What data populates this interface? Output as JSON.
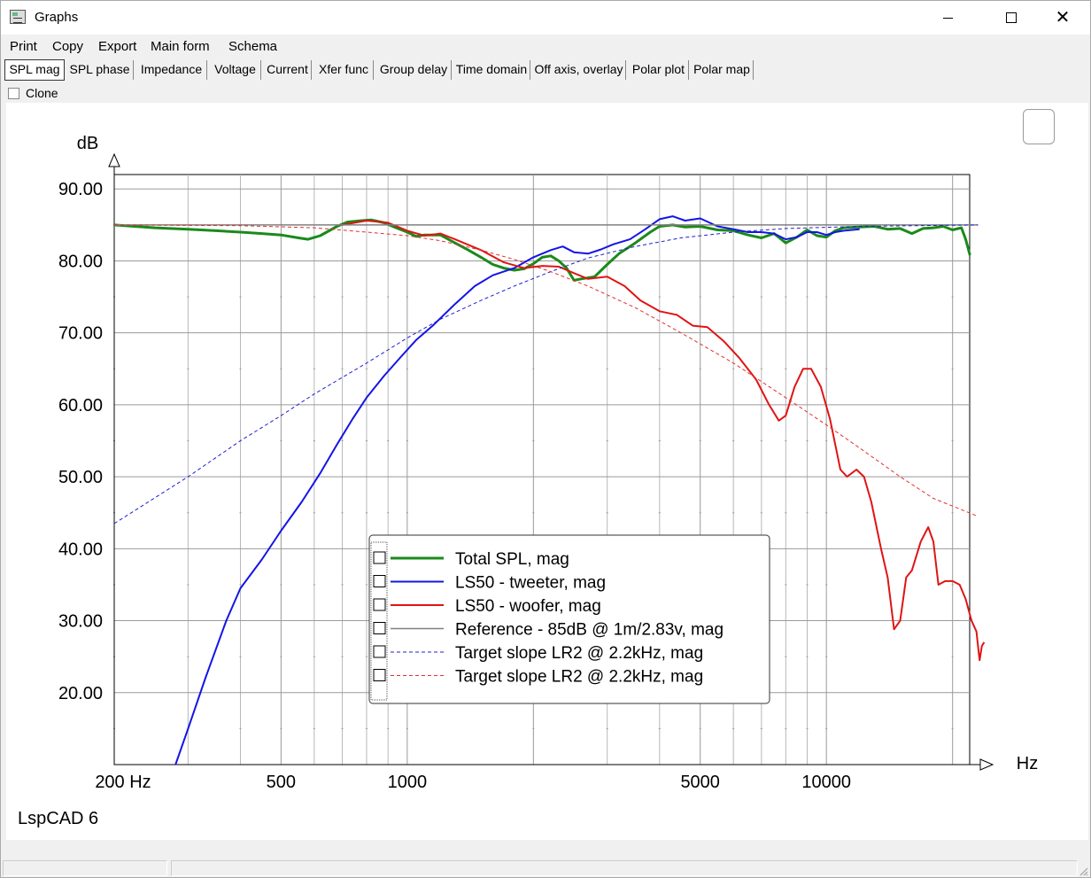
{
  "window": {
    "title": "Graphs"
  },
  "menu": [
    "Print",
    "Copy",
    "Export",
    "Main form",
    "Schema"
  ],
  "tabs": [
    "SPL mag",
    "SPL phase",
    "Impedance",
    "Voltage",
    "Current",
    "Xfer func",
    "Group delay",
    "Time domain",
    "Off axis, overlay",
    "Polar plot",
    "Polar map"
  ],
  "active_tab": "SPL mag",
  "clone_label": "Clone",
  "brand": "LspCAD 6",
  "colors": {
    "total": "#1a8a1a",
    "tweeter": "#1414e6",
    "woofer": "#e01414",
    "reference": "#808080",
    "target_tweeter": "#2020d0",
    "target_woofer": "#e03030"
  },
  "chart_data": {
    "type": "line",
    "xlabel": "Hz",
    "ylabel": "dB",
    "x_scale": "log",
    "xlim": [
      200,
      20000
    ],
    "ylim": [
      10,
      92
    ],
    "x_ticks": [
      {
        "value": 200,
        "label": "200 Hz"
      },
      {
        "value": 500,
        "label": "500"
      },
      {
        "value": 1000,
        "label": "1000"
      },
      {
        "value": 5000,
        "label": "5000"
      },
      {
        "value": 10000,
        "label": "10000"
      }
    ],
    "y_ticks": [
      {
        "value": 90,
        "label": "90.00"
      },
      {
        "value": 80,
        "label": "80.00"
      },
      {
        "value": 70,
        "label": "70.00"
      },
      {
        "value": 60,
        "label": "60.00"
      },
      {
        "value": 50,
        "label": "50.00"
      },
      {
        "value": 40,
        "label": "40.00"
      },
      {
        "value": 30,
        "label": "30.00"
      },
      {
        "value": 20,
        "label": "20.00"
      }
    ],
    "grid": true,
    "legend_position": "bottom-center",
    "series": [
      {
        "name": "Total SPL, mag",
        "color": "#1a8a1a",
        "dash": "solid",
        "width": 3,
        "points": [
          [
            200,
            85
          ],
          [
            250,
            84.6
          ],
          [
            300,
            84.4
          ],
          [
            350,
            84.2
          ],
          [
            400,
            84
          ],
          [
            450,
            83.8
          ],
          [
            500,
            83.6
          ],
          [
            550,
            83.2
          ],
          [
            580,
            83
          ],
          [
            620,
            83.5
          ],
          [
            680,
            84.8
          ],
          [
            720,
            85.4
          ],
          [
            780,
            85.6
          ],
          [
            820,
            85.7
          ],
          [
            880,
            85.3
          ],
          [
            950,
            84.5
          ],
          [
            1000,
            84
          ],
          [
            1050,
            83.4
          ],
          [
            1100,
            83.6
          ],
          [
            1200,
            83.6
          ],
          [
            1300,
            82.5
          ],
          [
            1400,
            81.5
          ],
          [
            1500,
            80.5
          ],
          [
            1600,
            79.5
          ],
          [
            1700,
            79
          ],
          [
            1800,
            78.7
          ],
          [
            1900,
            78.9
          ],
          [
            2000,
            79.6
          ],
          [
            2100,
            80.5
          ],
          [
            2200,
            80.7
          ],
          [
            2300,
            80
          ],
          [
            2400,
            79
          ],
          [
            2500,
            77.3
          ],
          [
            2600,
            77.5
          ],
          [
            2800,
            77.8
          ],
          [
            3000,
            79.5
          ],
          [
            3200,
            81
          ],
          [
            3500,
            82.5
          ],
          [
            3800,
            84
          ],
          [
            4000,
            84.8
          ],
          [
            4300,
            85
          ],
          [
            4600,
            84.7
          ],
          [
            5000,
            84.8
          ],
          [
            5500,
            84.3
          ],
          [
            6000,
            84.2
          ],
          [
            6500,
            83.6
          ],
          [
            7000,
            83.2
          ],
          [
            7500,
            83.8
          ],
          [
            8000,
            82.5
          ],
          [
            8500,
            83.3
          ],
          [
            9000,
            84.3
          ],
          [
            9500,
            83.5
          ],
          [
            10000,
            83.3
          ],
          [
            10500,
            84.2
          ],
          [
            11000,
            84.6
          ],
          [
            12000,
            84.7
          ],
          [
            13000,
            84.8
          ],
          [
            14000,
            84.4
          ],
          [
            15000,
            84.5
          ],
          [
            16000,
            83.8
          ],
          [
            17000,
            84.5
          ],
          [
            18000,
            84.6
          ],
          [
            19000,
            84.8
          ],
          [
            20000,
            84.3
          ],
          [
            21000,
            84.6
          ],
          [
            21500,
            83
          ],
          [
            22000,
            80.8
          ]
        ]
      },
      {
        "name": "LS50 - tweeter, mag",
        "color": "#1414e6",
        "dash": "solid",
        "width": 2,
        "points": [
          [
            280,
            10
          ],
          [
            300,
            15
          ],
          [
            330,
            22
          ],
          [
            370,
            30
          ],
          [
            400,
            34.5
          ],
          [
            450,
            38.5
          ],
          [
            500,
            42.5
          ],
          [
            560,
            46.5
          ],
          [
            620,
            50.5
          ],
          [
            680,
            54.5
          ],
          [
            740,
            58
          ],
          [
            800,
            61
          ],
          [
            880,
            64
          ],
          [
            960,
            66.5
          ],
          [
            1050,
            69
          ],
          [
            1150,
            71
          ],
          [
            1300,
            74
          ],
          [
            1450,
            76.5
          ],
          [
            1600,
            78
          ],
          [
            1800,
            79
          ],
          [
            2000,
            80.5
          ],
          [
            2200,
            81.5
          ],
          [
            2350,
            82
          ],
          [
            2500,
            81.2
          ],
          [
            2700,
            81
          ],
          [
            2900,
            81.6
          ],
          [
            3100,
            82.3
          ],
          [
            3400,
            83
          ],
          [
            3700,
            84.4
          ],
          [
            4000,
            85.8
          ],
          [
            4300,
            86.2
          ],
          [
            4600,
            85.6
          ],
          [
            5000,
            85.9
          ],
          [
            5500,
            84.8
          ],
          [
            6000,
            84.4
          ],
          [
            6500,
            84
          ],
          [
            7000,
            84
          ],
          [
            7500,
            83.8
          ],
          [
            8000,
            83
          ],
          [
            8500,
            83.3
          ],
          [
            9000,
            84
          ],
          [
            9500,
            84
          ],
          [
            10000,
            83.6
          ],
          [
            10500,
            84
          ],
          [
            11000,
            84.2
          ],
          [
            12000,
            84.4
          ]
        ]
      },
      {
        "name": "LS50 - woofer, mag",
        "color": "#e01414",
        "dash": "solid",
        "width": 2,
        "points": [
          [
            700,
            85
          ],
          [
            800,
            85.6
          ],
          [
            900,
            85.3
          ],
          [
            1000,
            84.2
          ],
          [
            1100,
            83.5
          ],
          [
            1200,
            83.8
          ],
          [
            1300,
            83
          ],
          [
            1500,
            81.5
          ],
          [
            1700,
            79.8
          ],
          [
            1900,
            79
          ],
          [
            2100,
            79.3
          ],
          [
            2300,
            79.2
          ],
          [
            2500,
            78.3
          ],
          [
            2700,
            77.5
          ],
          [
            3000,
            77.8
          ],
          [
            3300,
            76.5
          ],
          [
            3600,
            74.5
          ],
          [
            4000,
            73
          ],
          [
            4400,
            72.5
          ],
          [
            4800,
            71
          ],
          [
            5200,
            70.8
          ],
          [
            5700,
            68.8
          ],
          [
            6200,
            66.5
          ],
          [
            6800,
            63.5
          ],
          [
            7300,
            60
          ],
          [
            7700,
            57.8
          ],
          [
            8000,
            58.5
          ],
          [
            8400,
            62.5
          ],
          [
            8800,
            65
          ],
          [
            9200,
            65
          ],
          [
            9700,
            62.5
          ],
          [
            10200,
            58
          ],
          [
            10800,
            51
          ],
          [
            11200,
            50
          ],
          [
            11800,
            51
          ],
          [
            12300,
            50
          ],
          [
            12800,
            46.5
          ],
          [
            13500,
            40
          ],
          [
            14000,
            36
          ],
          [
            14500,
            28.8
          ],
          [
            15000,
            30
          ],
          [
            15500,
            36
          ],
          [
            16000,
            37
          ],
          [
            16800,
            41
          ],
          [
            17500,
            43
          ],
          [
            18000,
            41
          ],
          [
            18500,
            35
          ],
          [
            19200,
            35.5
          ],
          [
            20000,
            35.5
          ],
          [
            20800,
            35
          ],
          [
            21500,
            33
          ],
          [
            22200,
            30
          ],
          [
            22800,
            28.5
          ],
          [
            23200,
            24.5
          ],
          [
            23500,
            26.5
          ],
          [
            23800,
            27
          ]
        ]
      },
      {
        "name": "Reference - 85dB @ 1m/2.83v, mag",
        "color": "#808080",
        "dash": "solid",
        "width": 1.5,
        "points": [
          [
            200,
            85
          ],
          [
            23000,
            85
          ]
        ]
      },
      {
        "name": "Target slope LR2 @ 2.2kHz, mag",
        "color": "#2020d0",
        "dash": "dashed",
        "width": 1,
        "points": [
          [
            200,
            43.5
          ],
          [
            300,
            50
          ],
          [
            400,
            55
          ],
          [
            500,
            58.5
          ],
          [
            600,
            61.5
          ],
          [
            800,
            65.8
          ],
          [
            1000,
            69.3
          ],
          [
            1200,
            71.9
          ],
          [
            1500,
            74.5
          ],
          [
            1800,
            76.5
          ],
          [
            2200,
            78.5
          ],
          [
            2700,
            80.4
          ],
          [
            3500,
            82
          ],
          [
            4500,
            83.2
          ],
          [
            6000,
            84
          ],
          [
            8000,
            84.5
          ],
          [
            12000,
            84.8
          ],
          [
            23000,
            85
          ]
        ]
      },
      {
        "name": "Target slope LR2 @ 2.2kHz, mag",
        "color": "#e03030",
        "dash": "dashed",
        "width": 1,
        "points": [
          [
            200,
            85
          ],
          [
            400,
            84.9
          ],
          [
            600,
            84.6
          ],
          [
            800,
            84
          ],
          [
            1000,
            83.5
          ],
          [
            1200,
            82.8
          ],
          [
            1500,
            81.5
          ],
          [
            1800,
            80.2
          ],
          [
            2200,
            78.5
          ],
          [
            2700,
            76.5
          ],
          [
            3500,
            73.5
          ],
          [
            4500,
            70
          ],
          [
            6000,
            65.8
          ],
          [
            8000,
            61
          ],
          [
            10000,
            57.2
          ],
          [
            12000,
            54
          ],
          [
            15000,
            50
          ],
          [
            18000,
            47
          ],
          [
            23000,
            44.5
          ]
        ]
      }
    ],
    "legend": [
      {
        "label": "Total SPL, mag"
      },
      {
        "label": "LS50 - tweeter, mag"
      },
      {
        "label": "LS50 - woofer, mag"
      },
      {
        "label": "Reference - 85dB @ 1m/2.83v, mag"
      },
      {
        "label": "Target slope LR2 @ 2.2kHz, mag"
      },
      {
        "label": "Target slope LR2 @ 2.2kHz, mag"
      }
    ]
  }
}
